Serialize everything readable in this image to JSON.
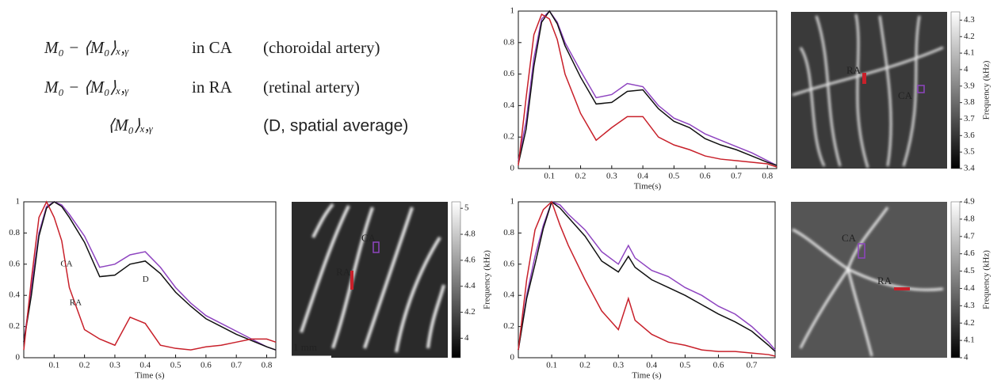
{
  "legend": [
    {
      "math": "M₀ − ⟨M₀⟩ₓ,ᵧ",
      "region": "in CA",
      "desc": "(choroidal artery)",
      "color": "#8e44c0"
    },
    {
      "math": "M₀ − ⟨M₀⟩ₓ,ᵧ",
      "region": "in RA",
      "desc": "(retinal artery)",
      "color": "#c8202a"
    },
    {
      "math": "⟨M₀⟩ₓ,ᵧ",
      "desc": "(D, spatial average)",
      "color": "#111111"
    }
  ],
  "chart_data": [
    {
      "type": "line",
      "xlabel": "Time(s)",
      "x": [
        0,
        0.025,
        0.05,
        0.075,
        0.1,
        0.125,
        0.15,
        0.2,
        0.25,
        0.3,
        0.35,
        0.4,
        0.45,
        0.5,
        0.55,
        0.6,
        0.65,
        0.7,
        0.75,
        0.8,
        0.83
      ],
      "xlim": [
        0,
        0.83
      ],
      "xticks": [
        0.1,
        0.2,
        0.3,
        0.4,
        0.5,
        0.6,
        0.7,
        0.8
      ],
      "ylim": [
        0,
        1
      ],
      "yticks": [
        0,
        0.2,
        0.4,
        0.6,
        0.8,
        1
      ],
      "series": [
        {
          "color": "#8e44c0",
          "values": [
            0.05,
            0.3,
            0.7,
            0.95,
            1,
            0.93,
            0.8,
            0.62,
            0.45,
            0.47,
            0.54,
            0.52,
            0.4,
            0.32,
            0.28,
            0.22,
            0.18,
            0.14,
            0.1,
            0.05,
            0.02
          ]
        },
        {
          "color": "#111111",
          "values": [
            0.03,
            0.25,
            0.65,
            0.93,
            1,
            0.92,
            0.78,
            0.58,
            0.41,
            0.42,
            0.49,
            0.5,
            0.38,
            0.3,
            0.26,
            0.19,
            0.15,
            0.12,
            0.08,
            0.04,
            0.02
          ]
        },
        {
          "color": "#c8202a",
          "values": [
            0.02,
            0.45,
            0.85,
            0.98,
            0.95,
            0.82,
            0.6,
            0.35,
            0.18,
            0.26,
            0.33,
            0.33,
            0.2,
            0.15,
            0.12,
            0.08,
            0.06,
            0.05,
            0.04,
            0.03,
            0.01
          ]
        }
      ]
    },
    {
      "type": "line",
      "xlabel": "Time (s)",
      "annotations": [
        "CA",
        "D",
        "RA"
      ],
      "x": [
        0,
        0.025,
        0.05,
        0.075,
        0.1,
        0.125,
        0.15,
        0.2,
        0.25,
        0.3,
        0.35,
        0.4,
        0.45,
        0.5,
        0.55,
        0.6,
        0.65,
        0.7,
        0.75,
        0.8,
        0.83
      ],
      "xlim": [
        0,
        0.83
      ],
      "xticks": [
        0.1,
        0.2,
        0.3,
        0.4,
        0.5,
        0.6,
        0.7,
        0.8
      ],
      "ylim": [
        0,
        1
      ],
      "yticks": [
        0,
        0.2,
        0.4,
        0.6,
        0.8,
        1
      ],
      "series": [
        {
          "color": "#8e44c0",
          "values": [
            0.1,
            0.45,
            0.8,
            0.97,
            1,
            0.98,
            0.92,
            0.78,
            0.58,
            0.6,
            0.66,
            0.68,
            0.58,
            0.45,
            0.35,
            0.27,
            0.22,
            0.17,
            0.12,
            0.07,
            0.05
          ]
        },
        {
          "color": "#111111",
          "values": [
            0.1,
            0.4,
            0.78,
            0.96,
            1,
            0.97,
            0.9,
            0.74,
            0.52,
            0.53,
            0.6,
            0.62,
            0.54,
            0.42,
            0.33,
            0.25,
            0.2,
            0.15,
            0.11,
            0.07,
            0.05
          ]
        },
        {
          "color": "#c8202a",
          "values": [
            0.05,
            0.5,
            0.9,
            1,
            0.9,
            0.75,
            0.45,
            0.18,
            0.12,
            0.08,
            0.26,
            0.22,
            0.08,
            0.06,
            0.05,
            0.07,
            0.08,
            0.1,
            0.12,
            0.12,
            0.1
          ]
        }
      ]
    },
    {
      "type": "line",
      "xlabel": "Time (s)",
      "x": [
        0,
        0.025,
        0.05,
        0.075,
        0.1,
        0.125,
        0.15,
        0.2,
        0.25,
        0.3,
        0.33,
        0.35,
        0.4,
        0.45,
        0.5,
        0.55,
        0.6,
        0.65,
        0.7,
        0.75,
        0.77
      ],
      "xlim": [
        0,
        0.77
      ],
      "xticks": [
        0.1,
        0.2,
        0.3,
        0.4,
        0.5,
        0.6,
        0.7
      ],
      "ylim": [
        0,
        1
      ],
      "yticks": [
        0,
        0.2,
        0.4,
        0.6,
        0.8,
        1
      ],
      "series": [
        {
          "color": "#8e44c0",
          "values": [
            0.05,
            0.4,
            0.65,
            0.85,
            1,
            0.98,
            0.92,
            0.82,
            0.68,
            0.6,
            0.72,
            0.64,
            0.56,
            0.52,
            0.45,
            0.4,
            0.33,
            0.28,
            0.2,
            0.1,
            0.05
          ]
        },
        {
          "color": "#111111",
          "values": [
            0.05,
            0.38,
            0.6,
            0.83,
            1,
            0.96,
            0.9,
            0.78,
            0.62,
            0.55,
            0.65,
            0.58,
            0.5,
            0.45,
            0.4,
            0.34,
            0.28,
            0.23,
            0.17,
            0.08,
            0.04
          ]
        },
        {
          "color": "#c8202a",
          "values": [
            0.05,
            0.5,
            0.82,
            0.95,
            1,
            0.85,
            0.72,
            0.5,
            0.3,
            0.18,
            0.38,
            0.24,
            0.15,
            0.1,
            0.08,
            0.05,
            0.04,
            0.04,
            0.03,
            0.02,
            0.01
          ]
        }
      ]
    }
  ],
  "images": [
    {
      "labels": [
        "RA",
        "CA"
      ],
      "colorbar_label": "Frequency (kHz)",
      "colorbar_lim": [
        3.4,
        4.35
      ],
      "colorbar_ticks": [
        3.4,
        3.5,
        3.6,
        3.7,
        3.8,
        3.9,
        4,
        4.1,
        4.2,
        4.3
      ]
    },
    {
      "labels": [
        "RA",
        "CA",
        "1 mm"
      ],
      "colorbar_label": "Frequency (kHz)",
      "colorbar_lim": [
        3.85,
        5.05
      ],
      "colorbar_ticks": [
        4,
        4.2,
        4.4,
        4.6,
        4.8,
        5
      ]
    },
    {
      "labels": [
        "RA",
        "CA"
      ],
      "colorbar_label": "Frequency (kHz)",
      "colorbar_lim": [
        4,
        4.9
      ],
      "colorbar_ticks": [
        4,
        4.1,
        4.2,
        4.3,
        4.4,
        4.5,
        4.6,
        4.7,
        4.8,
        4.9
      ]
    }
  ]
}
